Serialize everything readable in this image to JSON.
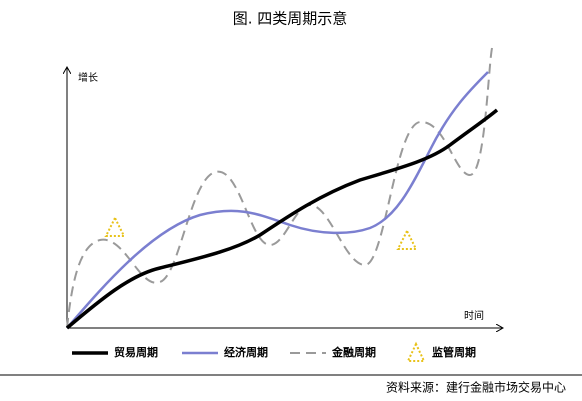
{
  "title": "图.  四类周期示意",
  "axes": {
    "y_label": "增长",
    "x_label": "时间"
  },
  "legend": [
    "贸易周期",
    "经济周期",
    "金融周期",
    "监管周期"
  ],
  "source": "资料来源：建行金融市场交易中心"
}
